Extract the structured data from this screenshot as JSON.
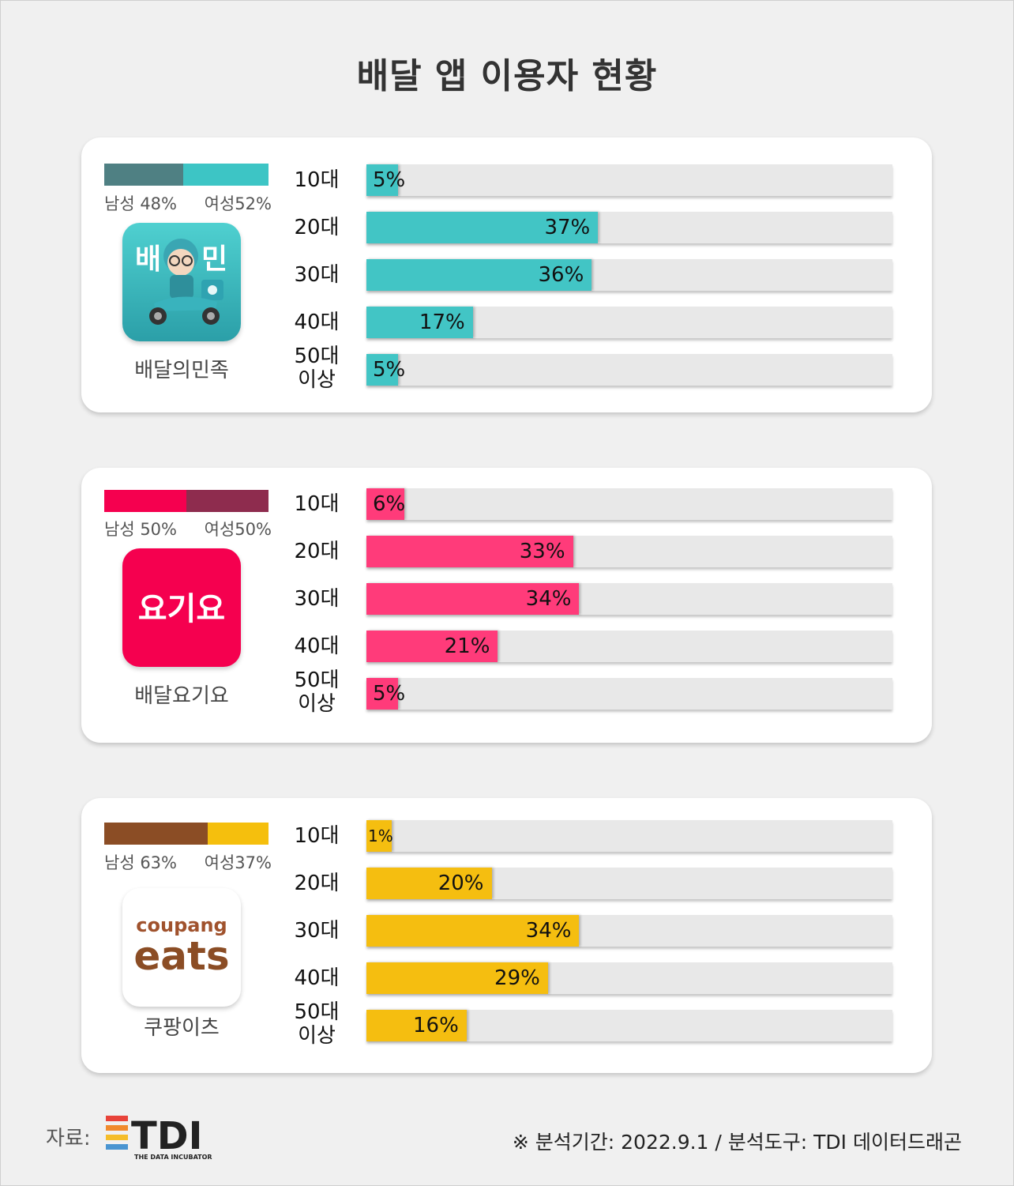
{
  "title": "배달 앱 이용자 현황",
  "age_labels": [
    "10대",
    "20대",
    "30대",
    "40대",
    "50대\n이상"
  ],
  "chart_data": [
    {
      "type": "bar",
      "app": "배달의민족",
      "logo_text": "배 민",
      "gender": {
        "male": 48,
        "female": 52,
        "male_label": "남성 48%",
        "female_label": "여성52%"
      },
      "gender_colors": {
        "male": "#4f8083",
        "female": "#3dc5c5"
      },
      "bar_color": "#42c5c5",
      "categories": [
        "10대",
        "20대",
        "30대",
        "40대",
        "50대 이상"
      ],
      "values": [
        5,
        37,
        36,
        17,
        5
      ],
      "value_labels": [
        "5%",
        "37%",
        "36%",
        "17%",
        "5%"
      ]
    },
    {
      "type": "bar",
      "app": "배달요기요",
      "logo_text": "요기요",
      "gender": {
        "male": 50,
        "female": 50,
        "male_label": "남성 50%",
        "female_label": "여성50%"
      },
      "gender_colors": {
        "male": "#f5004f",
        "female": "#8e2c4e"
      },
      "bar_color": "#ff3b7a",
      "categories": [
        "10대",
        "20대",
        "30대",
        "40대",
        "50대 이상"
      ],
      "values": [
        6,
        33,
        34,
        21,
        5
      ],
      "value_labels": [
        "6%",
        "33%",
        "34%",
        "21%",
        "5%"
      ]
    },
    {
      "type": "bar",
      "app": "쿠팡이츠",
      "logo_text_top": "coupang",
      "logo_text_bottom": "eats",
      "gender": {
        "male": 63,
        "female": 37,
        "male_label": "남성 63%",
        "female_label": "여성37%"
      },
      "gender_colors": {
        "male": "#8b4d25",
        "female": "#f5bf0d"
      },
      "bar_color": "#f5be10",
      "categories": [
        "10대",
        "20대",
        "30대",
        "40대",
        "50대 이상"
      ],
      "values": [
        1,
        20,
        34,
        29,
        16
      ],
      "value_labels": [
        "1%",
        "20%",
        "34%",
        "29%",
        "16%"
      ]
    }
  ],
  "footer": {
    "source_label": "자료:",
    "brand": "TDI",
    "brand_sub": "THE DATA INCUBATOR",
    "note": "※ 분석기간:  2022.9.1  / 분석도구: TDI 데이터드래곤"
  }
}
